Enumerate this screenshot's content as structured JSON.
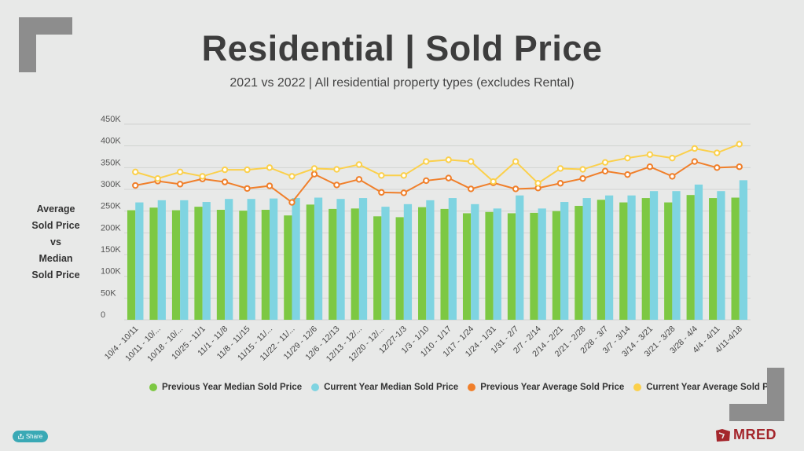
{
  "title": "Residential | Sold Price",
  "subtitle": "2021 vs 2022 | All residential property types (excludes Rental)",
  "ylabel_lines": [
    "Average",
    "Sold Price",
    "vs",
    "Median",
    "Sold Price"
  ],
  "share_label": "Share",
  "logo_text": "MRED",
  "colors": {
    "prev_median": "#7dc843",
    "curr_median": "#7fd4e1",
    "prev_avg": "#f07f2a",
    "curr_avg": "#fbd04b",
    "brand": "#a4262c",
    "corner": "#8d8d8d"
  },
  "chart_data": {
    "type": "bar",
    "xlabel": "",
    "ylabel": "Average Sold Price vs Median Sold Price",
    "ylim": [
      0,
      450000
    ],
    "y_ticks": [
      "0",
      "50K",
      "100K",
      "150K",
      "200K",
      "250K",
      "300K",
      "350K",
      "400K",
      "450K"
    ],
    "grid": true,
    "legend_position": "bottom",
    "categories": [
      "10/4 - 10/11",
      "10/11 - 10/...",
      "10/18 - 10/...",
      "10/25 - 11/1",
      "11/1 - 11/8",
      "11/8 - 11/15",
      "11/15 - 11/...",
      "11/22 - 11/...",
      "11/29 - 12/6",
      "12/6 - 12/13",
      "12/13 - 12/...",
      "12/20 - 12/...",
      "12/27-1/3",
      "1/3 - 1/10",
      "1/10 - 1/17",
      "1/17 - 1/24",
      "1/24 - 1/31",
      "1/31 - 2/7",
      "2/7 - 2/14",
      "2/14 - 2/21",
      "2/21 - 2/28",
      "2/28 - 3/7",
      "3/7 - 3/14",
      "3/14 - 3/21",
      "3/21 - 3/28",
      "3/28 - 4/4",
      "4/4 - 4/11",
      "4/11-4/18"
    ],
    "series": [
      {
        "name": "Previous Year Median Sold Price",
        "kind": "bar",
        "values": [
          252000,
          258000,
          252000,
          260000,
          253000,
          251000,
          253000,
          240000,
          265000,
          255000,
          256000,
          238000,
          236000,
          259000,
          255000,
          245000,
          248000,
          245000,
          246000,
          250000,
          262000,
          276000,
          270000,
          280000,
          270000,
          287000,
          280000,
          281000
        ]
      },
      {
        "name": "Current Year Median Sold Price",
        "kind": "bar",
        "values": [
          270000,
          275000,
          275000,
          271000,
          278000,
          278000,
          279000,
          280000,
          281000,
          278000,
          280000,
          260000,
          266000,
          275000,
          280000,
          266000,
          256000,
          286000,
          256000,
          271000,
          280000,
          286000,
          286000,
          296000,
          296000,
          311000,
          296000,
          321000
        ]
      },
      {
        "name": "Previous Year Average Sold Price",
        "kind": "line",
        "values": [
          309000,
          319000,
          312000,
          324000,
          317000,
          302000,
          308000,
          270000,
          335000,
          310000,
          323000,
          293000,
          292000,
          320000,
          326000,
          301000,
          315000,
          301000,
          303000,
          314000,
          325000,
          342000,
          334000,
          352000,
          330000,
          364000,
          350000,
          352000
        ]
      },
      {
        "name": "Current Year Average Sold Price",
        "kind": "line",
        "values": [
          340000,
          325000,
          340000,
          330000,
          345000,
          345000,
          350000,
          330000,
          348000,
          346000,
          357000,
          332000,
          332000,
          364000,
          368000,
          364000,
          318000,
          364000,
          314000,
          348000,
          346000,
          362000,
          372000,
          380000,
          372000,
          394000,
          384000,
          404000
        ]
      }
    ]
  }
}
